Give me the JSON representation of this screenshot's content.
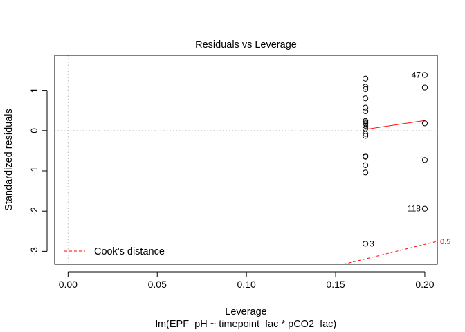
{
  "chart_data": {
    "type": "scatter",
    "title": "Residuals vs Leverage",
    "xlabel": "Leverage",
    "sublabel": "lm(EPF_pH ~ timepoint_fac * pCO2_fac)",
    "ylabel": "Standardized residuals",
    "xlim": [
      -0.0075,
      0.207
    ],
    "ylim": [
      -3.32,
      1.87
    ],
    "xticks": [
      0.0,
      0.05,
      0.1,
      0.15,
      0.2
    ],
    "xtick_labels": [
      "0.00",
      "0.05",
      "0.10",
      "0.15",
      "0.20"
    ],
    "yticks": [
      -3,
      -2,
      -1,
      0,
      1
    ],
    "ytick_labels": [
      "-3",
      "-2",
      "-1",
      "0",
      "1"
    ],
    "grid": false,
    "reference_lines": {
      "x": 0,
      "y": 0,
      "style": "dotted",
      "color": "#bebebe"
    },
    "points": [
      {
        "x": 0.1667,
        "y": 1.29
      },
      {
        "x": 0.1667,
        "y": 1.09
      },
      {
        "x": 0.1667,
        "y": 1.03
      },
      {
        "x": 0.1667,
        "y": 0.8
      },
      {
        "x": 0.1667,
        "y": 0.57
      },
      {
        "x": 0.1667,
        "y": 0.48
      },
      {
        "x": 0.1667,
        "y": 0.24
      },
      {
        "x": 0.1667,
        "y": 0.21
      },
      {
        "x": 0.1667,
        "y": 0.18
      },
      {
        "x": 0.1667,
        "y": 0.12
      },
      {
        "x": 0.1667,
        "y": 0.05
      },
      {
        "x": 0.1667,
        "y": -0.08
      },
      {
        "x": 0.1667,
        "y": -0.13
      },
      {
        "x": 0.1667,
        "y": -0.63
      },
      {
        "x": 0.1667,
        "y": -0.65
      },
      {
        "x": 0.1667,
        "y": -0.86
      },
      {
        "x": 0.1667,
        "y": -1.04
      },
      {
        "x": 0.1667,
        "y": -2.81
      },
      {
        "x": 0.2,
        "y": 1.38
      },
      {
        "x": 0.2,
        "y": 1.07
      },
      {
        "x": 0.2,
        "y": 0.18
      },
      {
        "x": 0.2,
        "y": -0.73
      },
      {
        "x": 0.2,
        "y": -1.94
      }
    ],
    "point_labels": [
      {
        "text": "47",
        "x": 0.2,
        "y": 1.38,
        "side": "left"
      },
      {
        "text": "118",
        "x": 0.2,
        "y": -1.94,
        "side": "left"
      },
      {
        "text": "3",
        "x": 0.1667,
        "y": -2.81,
        "side": "right"
      }
    ],
    "smooth_line": {
      "color": "#ff0000",
      "points": [
        [
          0.1667,
          0.03
        ],
        [
          0.2,
          0.25
        ]
      ]
    },
    "cooks_distance": {
      "color": "#ff0000",
      "style": "dashed",
      "contours": [
        {
          "level": "0.5",
          "points": [
            [
              0.1545,
              -3.32
            ],
            [
              0.207,
              -2.75
            ]
          ]
        }
      ]
    },
    "legend": {
      "position": "bottom-left",
      "entries": [
        {
          "label": "Cook's distance",
          "color": "#ff0000",
          "style": "dashed"
        }
      ]
    }
  }
}
